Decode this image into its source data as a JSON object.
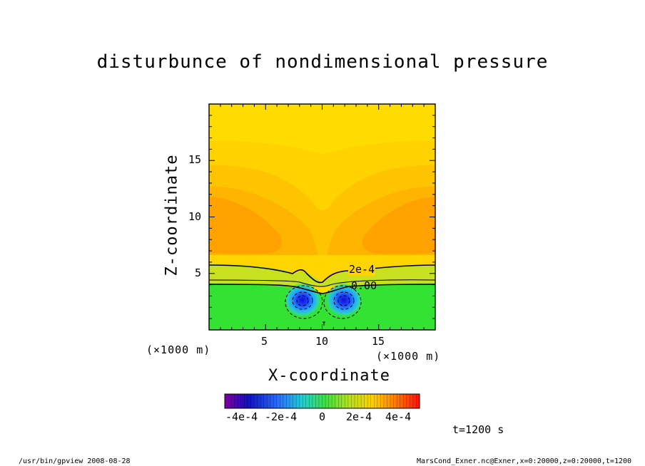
{
  "chart_data": {
    "type": "heatmap",
    "title": "disturbunce of nondimensional pressure",
    "xlabel": "X-coordinate",
    "ylabel": "Z-coordinate",
    "x_scale_note": "(×1000 m)",
    "y_scale_note": "(×1000 m)",
    "xlim": [
      0,
      20
    ],
    "ylim": [
      0,
      20
    ],
    "x_ticks": [
      "5",
      "10",
      "15"
    ],
    "y_ticks": [
      "5",
      "10",
      "15"
    ],
    "contour_labels": [
      "2e-4",
      "0.00"
    ],
    "colorbar": {
      "range": [
        -0.0005,
        0.0005
      ],
      "tick_labels": [
        "-4e-4",
        "-2e-4",
        "0",
        "2e-4",
        "4e-4"
      ]
    },
    "time_label": "t=1200 s"
  },
  "footer": {
    "left": "/usr/bin/gpview   2008-08-28",
    "right": "MarsCond_Exner.nc@Exner,x=0:20000,z=0:20000,t=1200"
  },
  "colors": {
    "positive_high": "#ffa000",
    "positive_low": "#ffdc00",
    "near_zero": "#33e233",
    "negative_min": "#2020ff"
  }
}
